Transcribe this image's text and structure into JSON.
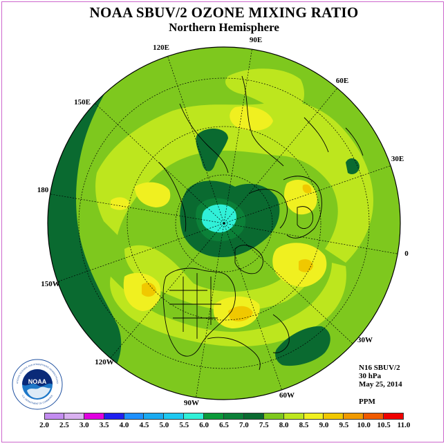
{
  "title": "NOAA SBUV/2 OZONE MIXING RATIO",
  "subtitle": "Northern Hemisphere",
  "longitude_labels": {
    "lon_90e": "90E",
    "lon_60e": "60E",
    "lon_30e": "30E",
    "lon_0": "0",
    "lon_30w": "30W",
    "lon_60w": "60W",
    "lon_90w": "90W",
    "lon_120w": "120W",
    "lon_150w": "150W",
    "lon_180": "180",
    "lon_150e": "150E",
    "lon_120e": "120E"
  },
  "info": {
    "instrument": "N16 SBUV/2",
    "pressure_level": "30 hPa",
    "date": "May 25, 2014",
    "units": "PPM"
  },
  "colorbar": {
    "labels": [
      "2.0",
      "2.5",
      "3.0",
      "3.5",
      "4.0",
      "4.5",
      "5.0",
      "5.5",
      "6.0",
      "6.5",
      "7.0",
      "7.5",
      "8.0",
      "8.5",
      "9.0",
      "9.5",
      "10.0",
      "10.5",
      "11.0"
    ],
    "colors": [
      "#c38cf0",
      "#d9b0f0",
      "#e000e0",
      "#2020f0",
      "#1e90ff",
      "#1aaaf0",
      "#1ec8f0",
      "#30f0d8",
      "#0a9a3a",
      "#0b8038",
      "#0a6a30",
      "#7ec81e",
      "#bde61e",
      "#f0f020",
      "#f0c800",
      "#f09a00",
      "#f05a00",
      "#f00000",
      "#8a5a3a"
    ]
  },
  "legend_colors": {
    "d75": "#7ec81e",
    "d80": "#bde61e",
    "d85": "#f0f020",
    "d90": "#f0c800",
    "d65": "#0b8038",
    "d70": "#0a6a30",
    "d55": "#30f0d8"
  },
  "logo": {
    "text": "NOAA",
    "ring_text_top": "NATIONAL OCEANIC AND ATMOSPHERIC ADMINISTRATION",
    "ring_text_bottom": "U.S. DEPARTMENT OF COMMERCE"
  }
}
